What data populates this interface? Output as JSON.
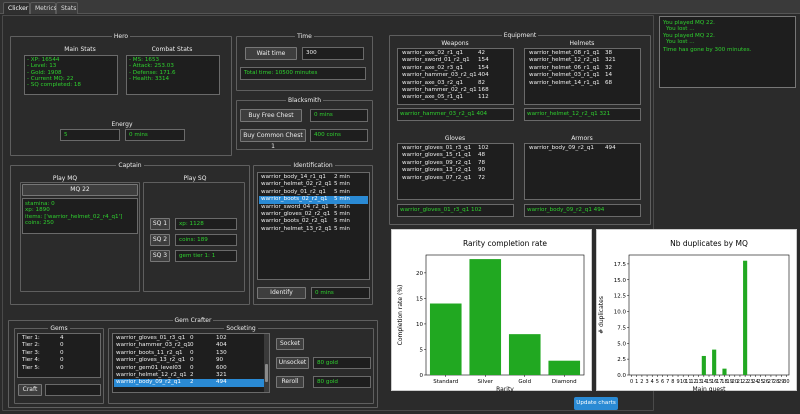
{
  "tabs": [
    "Clicker",
    "Metrics",
    "Stats"
  ],
  "hero": {
    "title": "Hero",
    "main_stats_title": "Main Stats",
    "main_stats": [
      "- XP: 16544",
      "- Level: 13",
      "- Gold: 1908",
      "- Current MQ: 22",
      "- SQ completed: 18"
    ],
    "combat_stats_title": "Combat Stats",
    "combat_stats": [
      "- MS: 1653",
      "- Attack: 253.03",
      "- Defense: 171.6",
      "- Health: 3314"
    ],
    "energy_title": "Energy",
    "energy_value": "5",
    "energy_time": "0 mins"
  },
  "time": {
    "title": "Time",
    "wait_button": "Wait time",
    "wait_value": "300",
    "total": "Total time: 10500 minutes"
  },
  "blacksmith": {
    "title": "Blacksmith",
    "free_chest_button": "Buy Free Chest",
    "free_chest_value": "0 mins",
    "common_chest_button": "Buy Common Chest 1",
    "common_chest_value": "400 coins"
  },
  "log": [
    "You played MQ 22.",
    "You lost ...",
    "You played MQ 22.",
    "You lost ...",
    "Time has gone by 300 minutes."
  ],
  "equipment": {
    "title": "Equipment",
    "weapons": {
      "title": "Weapons",
      "items": [
        [
          "warrior_axe_02_r1_q1",
          "42"
        ],
        [
          "warrior_sword_01_r2_q1",
          "154"
        ],
        [
          "warrior_axe_02_r3_q1",
          "154"
        ],
        [
          "warrior_hammer_03_r2_q1",
          "404"
        ],
        [
          "warrior_axe_03_r2_q1",
          "82"
        ],
        [
          "warrior_hammer_02_r2_q1",
          "168"
        ],
        [
          "warrior_axe_05_r1_q1",
          "112"
        ]
      ],
      "equipped": "warrior_hammer_03_r2_q1  404"
    },
    "helmets": {
      "title": "Helmets",
      "items": [
        [
          "warrior_helmet_08_r1_q1",
          "38"
        ],
        [
          "warrior_helmet_12_r2_q1",
          "321"
        ],
        [
          "warrior_helmet_06_r1_q1",
          "32"
        ],
        [
          "warrior_helmet_03_r1_q1",
          "14"
        ],
        [
          "warrior_helmet_14_r1_q1",
          "68"
        ]
      ],
      "equipped": "warrior_helmet_12_r2_q1  321"
    },
    "gloves": {
      "title": "Gloves",
      "items": [
        [
          "warrior_gloves_01_r3_q1",
          "102"
        ],
        [
          "warrior_gloves_15_r1_q1",
          "48"
        ],
        [
          "warrior_gloves_09_r2_q1",
          "78"
        ],
        [
          "warrior_gloves_13_r2_q1",
          "90"
        ],
        [
          "warrior_gloves_07_r2_q1",
          "72"
        ]
      ],
      "equipped": "warrior_gloves_01_r3_q1  102"
    },
    "armors": {
      "title": "Armors",
      "items": [
        [
          "warrior_body_09_r2_q1",
          "494"
        ]
      ],
      "equipped": "warrior_body_09_r2_q1  494"
    }
  },
  "captain": {
    "title": "Captain",
    "play_mq_title": "Play MQ",
    "mq_button": "MQ 22",
    "mq_info": [
      "stamina: 0",
      "xp: 1890",
      "items: ['warrior_helmet_02_r4_q1']",
      "coins: 250"
    ],
    "play_sq_title": "Play SQ",
    "sq": [
      {
        "btn": "SQ 1",
        "val": "xp: 1128"
      },
      {
        "btn": "SQ 2",
        "val": "coins: 189"
      },
      {
        "btn": "SQ 3",
        "val": "gem tier 1: 1"
      }
    ]
  },
  "identification": {
    "title": "Identification",
    "items": [
      [
        "warrior_body_14_r1_q1",
        "2 min"
      ],
      [
        "warrior_helmet_02_r2_q1",
        "5 min"
      ],
      [
        "warrior_body_01_r2_q1",
        "5 min"
      ],
      [
        "warrior_boots_02_r2_q1",
        "5 min"
      ],
      [
        "warrior_sword_04_r2_q1",
        "5 min"
      ],
      [
        "warrior_gloves_02_r2_q1",
        "5 min"
      ],
      [
        "warrior_boots_02_r2_q1",
        "5 min"
      ],
      [
        "warrior_helmet_13_r2_q1",
        "5 min"
      ]
    ],
    "selected": 3,
    "identify_button": "Identify",
    "identify_value": "0 mins"
  },
  "gem_crafter": {
    "title": "Gem Crafter",
    "gems_title": "Gems",
    "gems": [
      [
        "Tier 1:",
        "4"
      ],
      [
        "Tier 2:",
        "0"
      ],
      [
        "Tier 3:",
        "0"
      ],
      [
        "Tier 4:",
        "0"
      ],
      [
        "Tier 5:",
        "0"
      ]
    ],
    "craft_button": "Craft",
    "craft_value": "",
    "socketing_title": "Socketing",
    "socket_items": [
      [
        "warrior_gloves_01_r3_q1",
        "0",
        "102"
      ],
      [
        "warrior_hammer_03_r2_q1",
        "0",
        "404"
      ],
      [
        "warrior_boots_11_r2_q1",
        "0",
        "130"
      ],
      [
        "warrior_gloves_13_r2_q1",
        "0",
        "90"
      ],
      [
        "warrior_gem01_level03",
        "0",
        "600"
      ],
      [
        "warrior_helmet_12_r2_q1",
        "2",
        "321"
      ],
      [
        "warrior_body_09_r2_q1",
        "2",
        "494"
      ]
    ],
    "socket_selected": 6,
    "socket_button": "Socket",
    "unsocket_button": "Unsocket",
    "unsocket_value": "80 gold",
    "reroll_button": "Reroll",
    "reroll_value": "80 gold"
  },
  "update_button": "Update charts",
  "colors": {
    "accent_green": "#2fd12f",
    "selection": "#2a8ad4",
    "bar_green": "#21a821"
  },
  "chart_data": [
    {
      "type": "bar",
      "title": "Rarity completion rate",
      "xlabel": "Rarity",
      "ylabel": "Completion rate (%)",
      "categories": [
        "Standard",
        "Silver",
        "Gold",
        "Diamond"
      ],
      "values": [
        14,
        22.7,
        8,
        2.8
      ],
      "ylim": [
        0,
        23.5
      ],
      "yticks": [
        "0",
        "5",
        "10",
        "15",
        "20"
      ],
      "grid": false
    },
    {
      "type": "bar",
      "title": "Nb duplicates by MQ",
      "xlabel": "Main quest",
      "ylabel": "# duplicates",
      "categories": [
        "0",
        "1",
        "2",
        "3",
        "4",
        "5",
        "6",
        "7",
        "8",
        "9",
        "10",
        "11",
        "12",
        "13",
        "14",
        "15",
        "16",
        "17",
        "18",
        "19",
        "20",
        "21",
        "22",
        "23",
        "24",
        "25",
        "26",
        "27",
        "28",
        "29",
        "30"
      ],
      "values": [
        0,
        0,
        0,
        0,
        0,
        0,
        0,
        0,
        0,
        0,
        0,
        0,
        0,
        0,
        3,
        0,
        4,
        0,
        1,
        0,
        0,
        0,
        18,
        0,
        0,
        0,
        0,
        0,
        0,
        0,
        0
      ],
      "ylim": [
        0,
        18.9
      ],
      "yticks": [
        "0.0",
        "2.5",
        "5.0",
        "7.5",
        "10.0",
        "12.5",
        "15.0",
        "17.5"
      ],
      "grid": false
    }
  ]
}
